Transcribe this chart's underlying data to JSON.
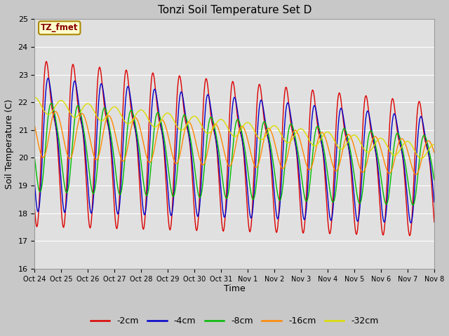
{
  "title": "Tonzi Soil Temperature Set D",
  "xlabel": "Time",
  "ylabel": "Soil Temperature (C)",
  "ylim": [
    16.0,
    25.0
  ],
  "yticks": [
    16.0,
    17.0,
    18.0,
    19.0,
    20.0,
    21.0,
    22.0,
    23.0,
    24.0,
    25.0
  ],
  "xtick_labels": [
    "Oct 24",
    "Oct 25",
    "Oct 26",
    "Oct 27",
    "Oct 28",
    "Oct 29",
    "Oct 30",
    "Oct 31",
    "Nov 1",
    "Nov 2",
    "Nov 3",
    "Nov 4",
    "Nov 5",
    "Nov 6",
    "Nov 7",
    "Nov 8"
  ],
  "legend_labels": [
    "-2cm",
    "-4cm",
    "-8cm",
    "-16cm",
    "-32cm"
  ],
  "line_colors": [
    "#dd0000",
    "#0000cc",
    "#00bb00",
    "#ff8800",
    "#dddd00"
  ],
  "annotation_text": "TZ_fmet",
  "annotation_color": "#880000",
  "annotation_bg": "#ffffcc",
  "annotation_border": "#aa8800",
  "fig_bg_color": "#c8c8c8",
  "plot_bg_color": "#e0e0e0",
  "figsize": [
    6.4,
    4.8
  ],
  "dpi": 100
}
